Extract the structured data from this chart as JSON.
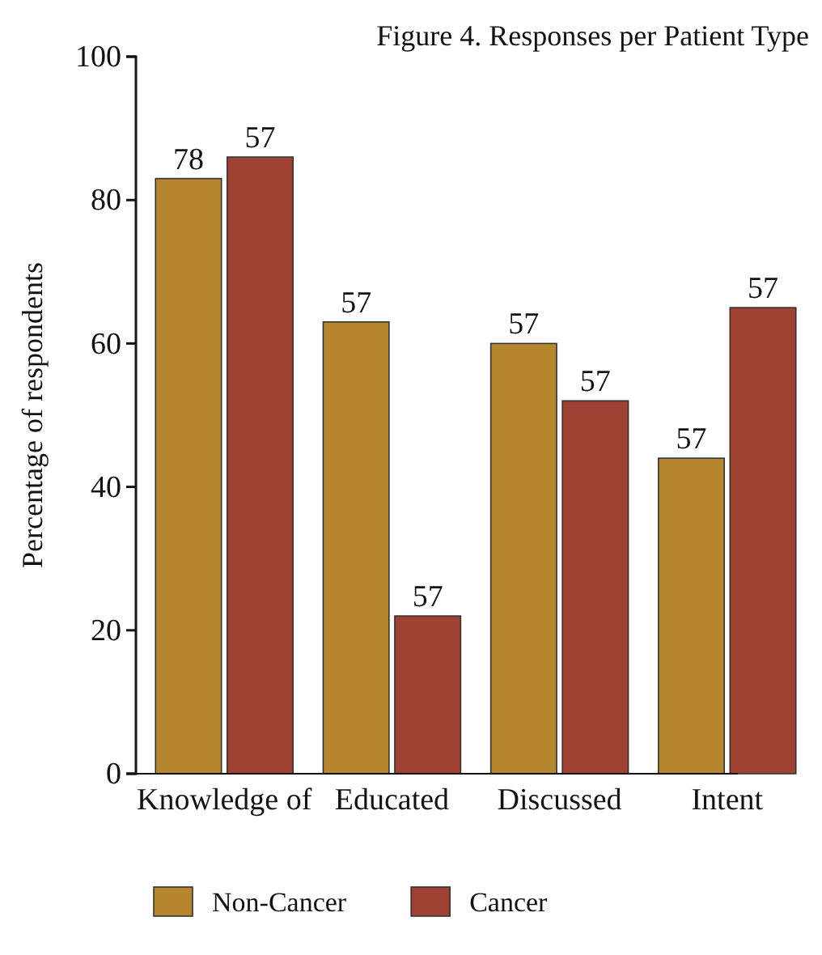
{
  "chart_data": {
    "type": "bar",
    "title": "Figure 4. Responses per Patient Type",
    "ylabel": "Percentage of respondents",
    "categories": [
      "Knowledge of",
      "Educated",
      "Discussed",
      "Intent"
    ],
    "series": [
      {
        "name": "Non-Cancer",
        "color": "#b5862e",
        "values": [
          83,
          63,
          60,
          44
        ]
      },
      {
        "name": "Cancer",
        "color": "#9e4032",
        "values": [
          86,
          22,
          52,
          65
        ]
      }
    ],
    "annotations": [
      {
        "text": "78",
        "x": "Knowledge of",
        "y": 83
      },
      {
        "text": "57",
        "x": "Knowledge of",
        "y": 86
      },
      {
        "text": "57",
        "x": "Educated",
        "y": 63
      },
      {
        "text": "57",
        "x": "Educated",
        "y": 22
      },
      {
        "text": "57",
        "x": "Discussed",
        "y": 60
      },
      {
        "text": "57",
        "x": "Discussed",
        "y": 52
      },
      {
        "text": "57",
        "x": "Intent",
        "y": 44
      },
      {
        "text": "57",
        "x": "Intent",
        "y": 65
      }
    ],
    "ylim": [
      0,
      100
    ],
    "yticks": [
      0,
      20,
      40,
      60,
      80,
      100
    ],
    "grid": false,
    "legend": "bottom"
  }
}
